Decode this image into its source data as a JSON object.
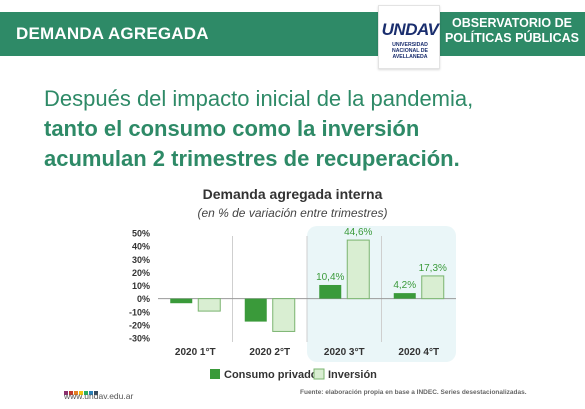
{
  "header": {
    "title": "DEMANDA AGREGADA",
    "logo_text": "UNDAV",
    "logo_sub": [
      "UNIVERSIDAD",
      "NACIONAL DE",
      "AVELLANEDA"
    ],
    "observatory_line1": "OBSERVATORIO DE",
    "observatory_line2": "POLÍTICAS PÚBLICAS"
  },
  "headline": {
    "line1": "Después del impacto inicial de la pandemia,",
    "line2": "tanto el consumo como la inversión",
    "line3": "acumulan 2 trimestres de recuperación."
  },
  "colors": {
    "brand_green": "#2e8a67",
    "consumo": "#3a9a3a",
    "inversion_fill": "#d9eed2",
    "inversion_stroke": "#7ab46f",
    "highlight": "#eaf6f8",
    "label_green": "#3a9a3a"
  },
  "chart_data": {
    "type": "bar",
    "title": "Demanda agregada interna",
    "subtitle": "(en % de variación entre trimestres)",
    "categories": [
      "2020 1°T",
      "2020 2°T",
      "2020 3°T",
      "2020 4°T"
    ],
    "series": [
      {
        "name": "Consumo privado",
        "values": [
          -3.5,
          -17.5,
          10.4,
          4.2
        ],
        "labels": [
          "",
          "",
          "10,4%",
          "4,2%"
        ]
      },
      {
        "name": "Inversión",
        "values": [
          -9.5,
          -25.0,
          44.6,
          17.3
        ],
        "labels": [
          "",
          "",
          "44,6%",
          "17,3%"
        ]
      }
    ],
    "y_ticks": [
      "50%",
      "40%",
      "30%",
      "20%",
      "10%",
      "0%",
      "-10%",
      "-20%",
      "-30%"
    ],
    "y_tick_values": [
      50,
      40,
      30,
      20,
      10,
      0,
      -10,
      -20,
      -30
    ],
    "ylim": [
      -30,
      50
    ],
    "highlighted_categories": [
      2,
      3
    ],
    "legend_position": "bottom"
  },
  "footer": {
    "url": "www.undav.edu.ar",
    "source": "Fuente: elaboración propia en base a INDEC. Series desestacionalizadas.",
    "dot_colors": [
      "#8b2f6e",
      "#c0392b",
      "#e67e22",
      "#f1c40f",
      "#27ae60",
      "#2980b9",
      "#34495e"
    ]
  }
}
